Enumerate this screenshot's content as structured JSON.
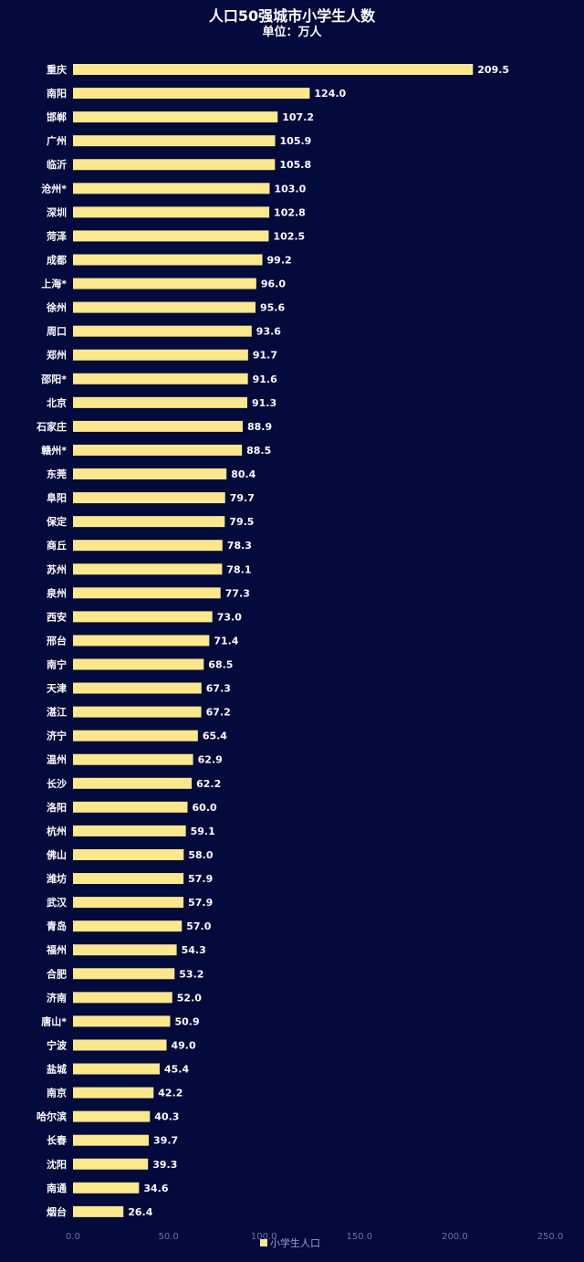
{
  "chart_data": {
    "type": "bar",
    "orientation": "horizontal",
    "title": "人口50强城市小学生人数",
    "subtitle": "单位：万人",
    "categories": [
      "重庆",
      "南阳",
      "邯郸",
      "广州",
      "临沂",
      "沧州*",
      "深圳",
      "菏泽",
      "成都",
      "上海*",
      "徐州",
      "周口",
      "郑州",
      "邵阳*",
      "北京",
      "石家庄",
      "赣州*",
      "东莞",
      "阜阳",
      "保定",
      "商丘",
      "苏州",
      "泉州",
      "西安",
      "邢台",
      "南宁",
      "天津",
      "湛江",
      "济宁",
      "温州",
      "长沙",
      "洛阳",
      "杭州",
      "佛山",
      "潍坊",
      "武汉",
      "青岛",
      "福州",
      "合肥",
      "济南",
      "唐山*",
      "宁波",
      "盐城",
      "南京",
      "哈尔滨",
      "长春",
      "沈阳",
      "南通",
      "烟台"
    ],
    "value_labels": [
      "209.5",
      "124.0",
      "107.2",
      "105.9",
      "105.8",
      "103.0",
      "102.8",
      "102.5",
      "99.2",
      "96.0",
      "95.6",
      "93.6",
      "91.7",
      "91.6",
      "91.3",
      "88.9",
      "88.5",
      "80.4",
      "79.7",
      "79.5",
      "78.3",
      "78.1",
      "77.3",
      "73.0",
      "71.4",
      "68.5",
      "67.3",
      "67.2",
      "65.4",
      "62.9",
      "62.2",
      "60.0",
      "59.1",
      "58.0",
      "57.9",
      "57.9",
      "57.0",
      "54.3",
      "53.2",
      "52.0",
      "50.9",
      "49.0",
      "45.4",
      "42.2",
      "40.3",
      "39.7",
      "39.3",
      "34.6",
      "26.4"
    ],
    "series": [
      {
        "name": "小学生人口",
        "color": "#fbe88a",
        "values": [
          209.5,
          124.0,
          107.2,
          105.9,
          105.8,
          103.0,
          102.8,
          102.5,
          99.2,
          96.0,
          95.6,
          93.6,
          91.7,
          91.6,
          91.3,
          88.9,
          88.5,
          80.4,
          79.7,
          79.5,
          78.3,
          78.1,
          77.3,
          73.0,
          71.4,
          68.5,
          67.3,
          67.2,
          65.4,
          62.9,
          62.2,
          60.0,
          59.1,
          58.0,
          57.9,
          57.9,
          57.0,
          54.3,
          53.2,
          52.0,
          50.9,
          49.0,
          45.4,
          42.2,
          40.3,
          39.7,
          39.3,
          34.6,
          26.4
        ]
      }
    ],
    "xlim": [
      0,
      250
    ],
    "xticks": [
      "0.0",
      "50.0",
      "100.0",
      "150.0",
      "200.0",
      "250.0"
    ],
    "legend": "bottom-center",
    "grid": false
  },
  "colors": {
    "background": "#030a3c",
    "bar": "#fbe88a",
    "text": "#ffffff",
    "tick": "#6e73b0"
  }
}
